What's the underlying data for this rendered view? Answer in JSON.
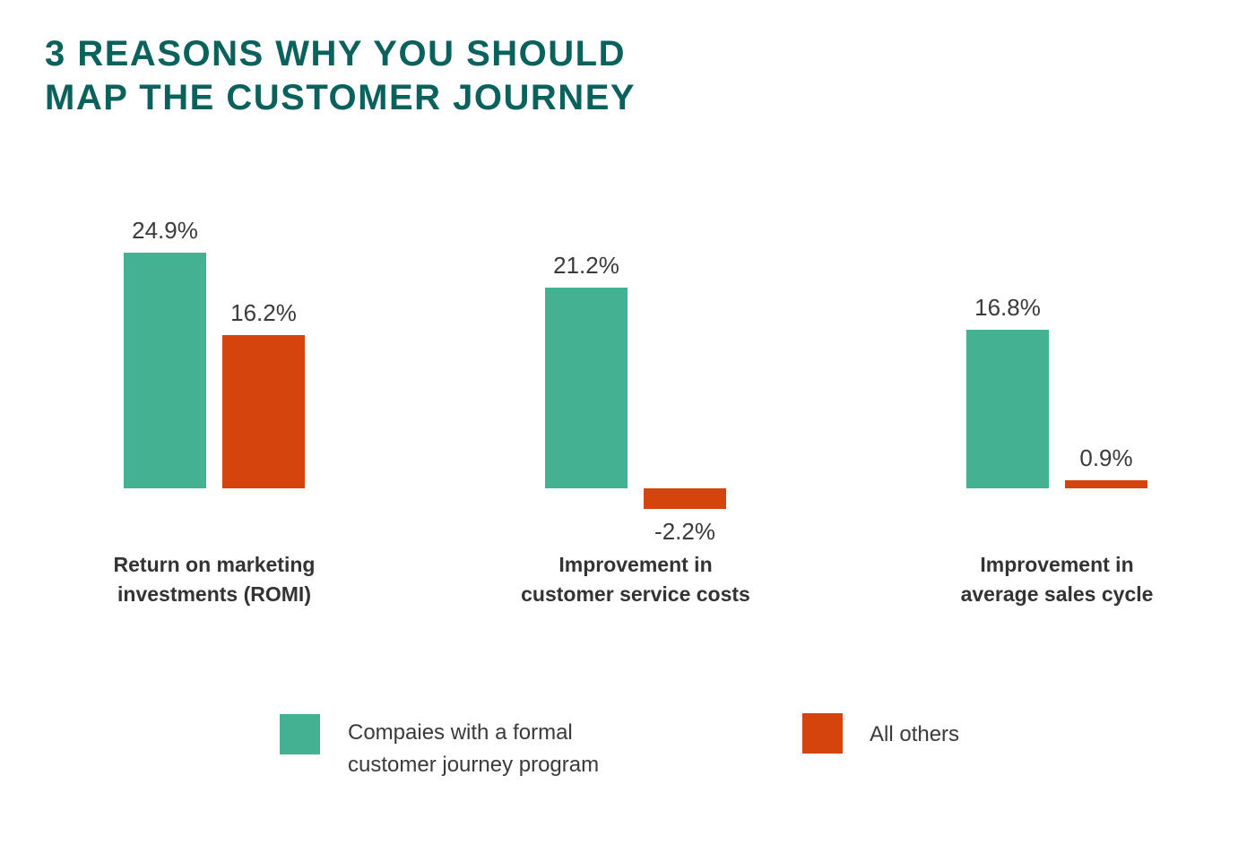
{
  "title": {
    "text": "3 REASONS WHY YOU SHOULD\nMAP THE CUSTOMER JOURNEY"
  },
  "colors": {
    "title": "#0B615B",
    "teal": "#45B193",
    "orange": "#D4440C",
    "value_label": "#3A3A3A",
    "category_label": "#333333",
    "background": "#FFFFFF"
  },
  "chart_data": {
    "type": "bar",
    "categories": [
      "Return on marketing investments (ROMI)",
      "Improvement in customer service costs",
      "Improvement in average sales cycle"
    ],
    "categories_display": [
      "Return on marketing\ninvestments (ROMI)",
      "Improvement in\ncustomer service costs",
      "Improvement in\naverage sales cycle"
    ],
    "series": [
      {
        "name": "Compaies with a formal customer journey program",
        "color": "#45B193",
        "values": [
          24.9,
          21.2,
          16.8
        ]
      },
      {
        "name": "All others",
        "color": "#D4440C",
        "values": [
          16.2,
          -2.2,
          0.9
        ]
      }
    ],
    "unit": "%",
    "value_labels_shown": true,
    "ylim": [
      -2.2,
      24.9
    ],
    "grid": false,
    "axes_visible": false,
    "legend_position": "bottom"
  },
  "legend": {
    "items": [
      {
        "label": "Compaies with a formal\ncustomer journey program",
        "color": "#45B193"
      },
      {
        "label": "All others",
        "color": "#D4440C"
      }
    ]
  }
}
